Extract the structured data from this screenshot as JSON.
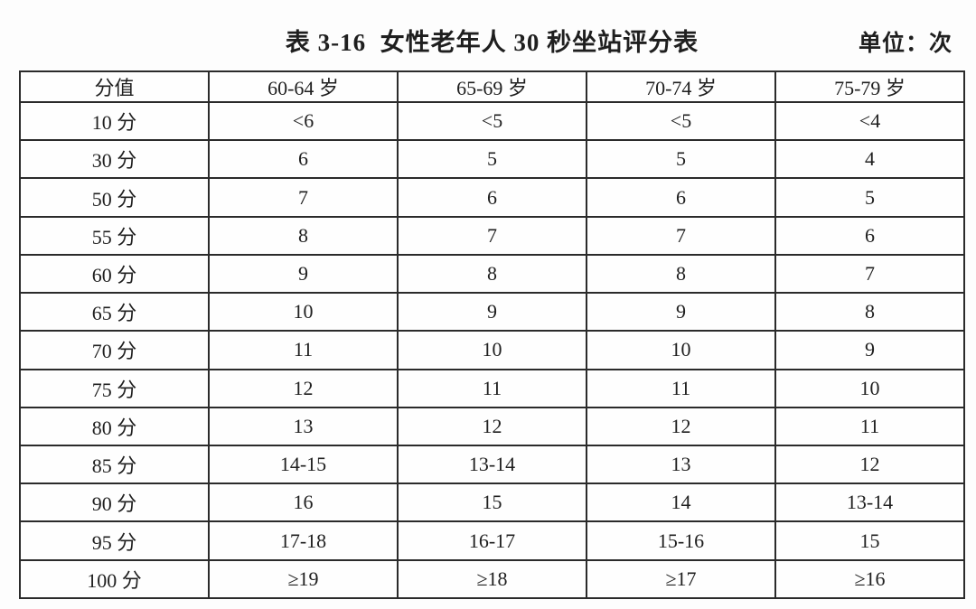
{
  "page": {
    "title": "表 3-16  女性老年人 30 秒坐站评分表",
    "unit_label": "单位：次"
  },
  "table": {
    "columns": [
      "分值",
      "60-64 岁",
      "65-69 岁",
      "70-74 岁",
      "75-79 岁"
    ],
    "rows": [
      {
        "score": "10 分",
        "values": [
          "<6",
          "<5",
          "<5",
          "<4"
        ]
      },
      {
        "score": "30 分",
        "values": [
          "6",
          "5",
          "5",
          "4"
        ]
      },
      {
        "score": "50 分",
        "values": [
          "7",
          "6",
          "6",
          "5"
        ]
      },
      {
        "score": "55 分",
        "values": [
          "8",
          "7",
          "7",
          "6"
        ]
      },
      {
        "score": "60 分",
        "values": [
          "9",
          "8",
          "8",
          "7"
        ]
      },
      {
        "score": "65 分",
        "values": [
          "10",
          "9",
          "9",
          "8"
        ]
      },
      {
        "score": "70 分",
        "values": [
          "11",
          "10",
          "10",
          "9"
        ]
      },
      {
        "score": "75 分",
        "values": [
          "12",
          "11",
          "11",
          "10"
        ]
      },
      {
        "score": "80 分",
        "values": [
          "13",
          "12",
          "12",
          "11"
        ]
      },
      {
        "score": "85 分",
        "values": [
          "14-15",
          "13-14",
          "13",
          "12"
        ]
      },
      {
        "score": "90 分",
        "values": [
          "16",
          "15",
          "14",
          "13-14"
        ]
      },
      {
        "score": "95 分",
        "values": [
          "17-18",
          "16-17",
          "15-16",
          "15"
        ]
      },
      {
        "score": "100 分",
        "values": [
          "≥19",
          "≥18",
          "≥17",
          "≥16"
        ]
      }
    ]
  },
  "chart_data": {
    "type": "table",
    "title": "表 3-16  女性老年人 30 秒坐站评分表",
    "unit": "单位：次",
    "columns": [
      "分值",
      "60-64 岁",
      "65-69 岁",
      "70-74 岁",
      "75-79 岁"
    ],
    "rows": [
      [
        "10 分",
        "<6",
        "<5",
        "<5",
        "<4"
      ],
      [
        "30 分",
        "6",
        "5",
        "5",
        "4"
      ],
      [
        "50 分",
        "7",
        "6",
        "6",
        "5"
      ],
      [
        "55 分",
        "8",
        "7",
        "7",
        "6"
      ],
      [
        "60 分",
        "9",
        "8",
        "8",
        "7"
      ],
      [
        "65 分",
        "10",
        "9",
        "9",
        "8"
      ],
      [
        "70 分",
        "11",
        "10",
        "10",
        "9"
      ],
      [
        "75 分",
        "12",
        "11",
        "11",
        "10"
      ],
      [
        "80 分",
        "13",
        "12",
        "12",
        "11"
      ],
      [
        "85 分",
        "14-15",
        "13-14",
        "13",
        "12"
      ],
      [
        "90 分",
        "16",
        "15",
        "14",
        "13-14"
      ],
      [
        "95 分",
        "17-18",
        "16-17",
        "15-16",
        "15"
      ],
      [
        "100 分",
        "≥19",
        "≥18",
        "≥17",
        "≥16"
      ]
    ]
  }
}
